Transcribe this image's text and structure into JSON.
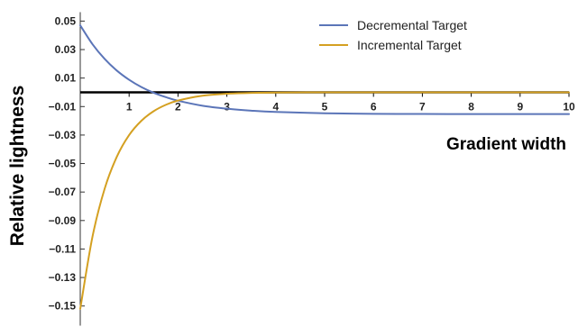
{
  "chart_data": {
    "type": "line",
    "title": "",
    "xlabel": "Gradient width",
    "ylabel": "Relative lightness",
    "xlim": [
      0,
      10
    ],
    "ylim": [
      -0.16,
      0.055
    ],
    "x_ticks": [
      1,
      2,
      3,
      4,
      5,
      6,
      7,
      8,
      9,
      10
    ],
    "y_ticks": [
      0.05,
      0.03,
      0.01,
      -0.01,
      -0.03,
      -0.05,
      -0.07,
      -0.09,
      -0.11,
      -0.13,
      -0.15
    ],
    "y_tick_labels": [
      "0.05",
      "0.03",
      "0.01",
      "−0.01",
      "−0.03",
      "−0.05",
      "−0.07",
      "−0.09",
      "−0.11",
      "−0.13",
      "−0.15"
    ],
    "grid": false,
    "legend_position": "top-right",
    "series": [
      {
        "name": "Decremental Target",
        "color": "#5b75b8",
        "x": [
          0,
          0.25,
          0.5,
          0.75,
          1,
          1.25,
          1.5,
          1.75,
          2,
          2.5,
          3,
          3.5,
          4,
          5,
          6,
          7,
          8,
          9,
          10
        ],
        "y": [
          0.047,
          0.0338,
          0.0234,
          0.0152,
          0.0088,
          0.0037,
          -0.0003,
          -0.0034,
          -0.0059,
          -0.0094,
          -0.0115,
          -0.0129,
          -0.0138,
          -0.0147,
          -0.0151,
          -0.0152,
          -0.0153,
          -0.0153,
          -0.0153
        ]
      },
      {
        "name": "Incremental Target",
        "color": "#d4a021",
        "x": [
          0,
          0.25,
          0.5,
          0.75,
          1,
          1.25,
          1.5,
          1.75,
          2,
          2.5,
          3,
          3.5,
          4,
          5,
          6,
          7,
          8,
          9,
          10
        ],
        "y": [
          -0.152,
          -0.1014,
          -0.0676,
          -0.0451,
          -0.03,
          -0.02,
          -0.0133,
          -0.0088,
          -0.0058,
          -0.0024,
          -0.001,
          -0.0004,
          -0.0002,
          0.0,
          0.0,
          0.0,
          0.0,
          0.0,
          0.0
        ]
      }
    ]
  }
}
